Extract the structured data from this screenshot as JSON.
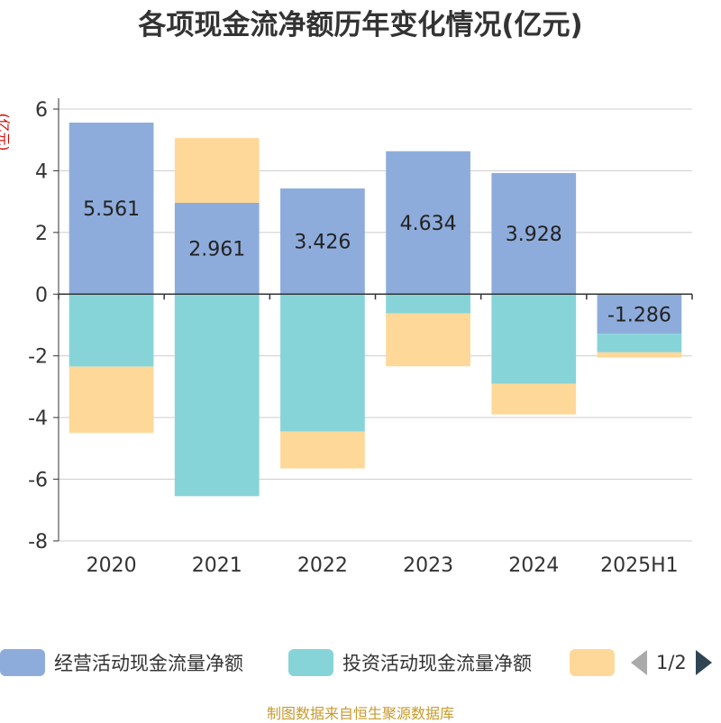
{
  "chart_data": {
    "type": "bar",
    "stacked": true,
    "title": "各项现金流净额历年变化情况(亿元)",
    "ylabel": "(亿元)",
    "ylim": [
      -8,
      6
    ],
    "yticks": [
      6,
      4,
      2,
      0,
      -2,
      -4,
      -6,
      -8
    ],
    "categories": [
      "2020",
      "2021",
      "2022",
      "2023",
      "2024",
      "2025H1"
    ],
    "grid": true,
    "legend_position": "bottom",
    "series": [
      {
        "name": "经营活动现金流量净额",
        "color": "#8eacdb",
        "values": [
          5.561,
          2.961,
          3.426,
          4.634,
          3.928,
          -1.286
        ],
        "show_labels": true
      },
      {
        "name": "投资活动现金流量净额",
        "color": "#86d4d8",
        "values": [
          -2.35,
          -6.55,
          -4.45,
          -0.62,
          -2.9,
          -0.6
        ]
      },
      {
        "name": "",
        "color": "#fed899",
        "values": [
          -2.15,
          2.1,
          -1.2,
          -1.72,
          -1.0,
          -0.17
        ]
      }
    ]
  },
  "legend": {
    "page": "1/2"
  },
  "source": "制图数据来自恒生聚源数据库"
}
